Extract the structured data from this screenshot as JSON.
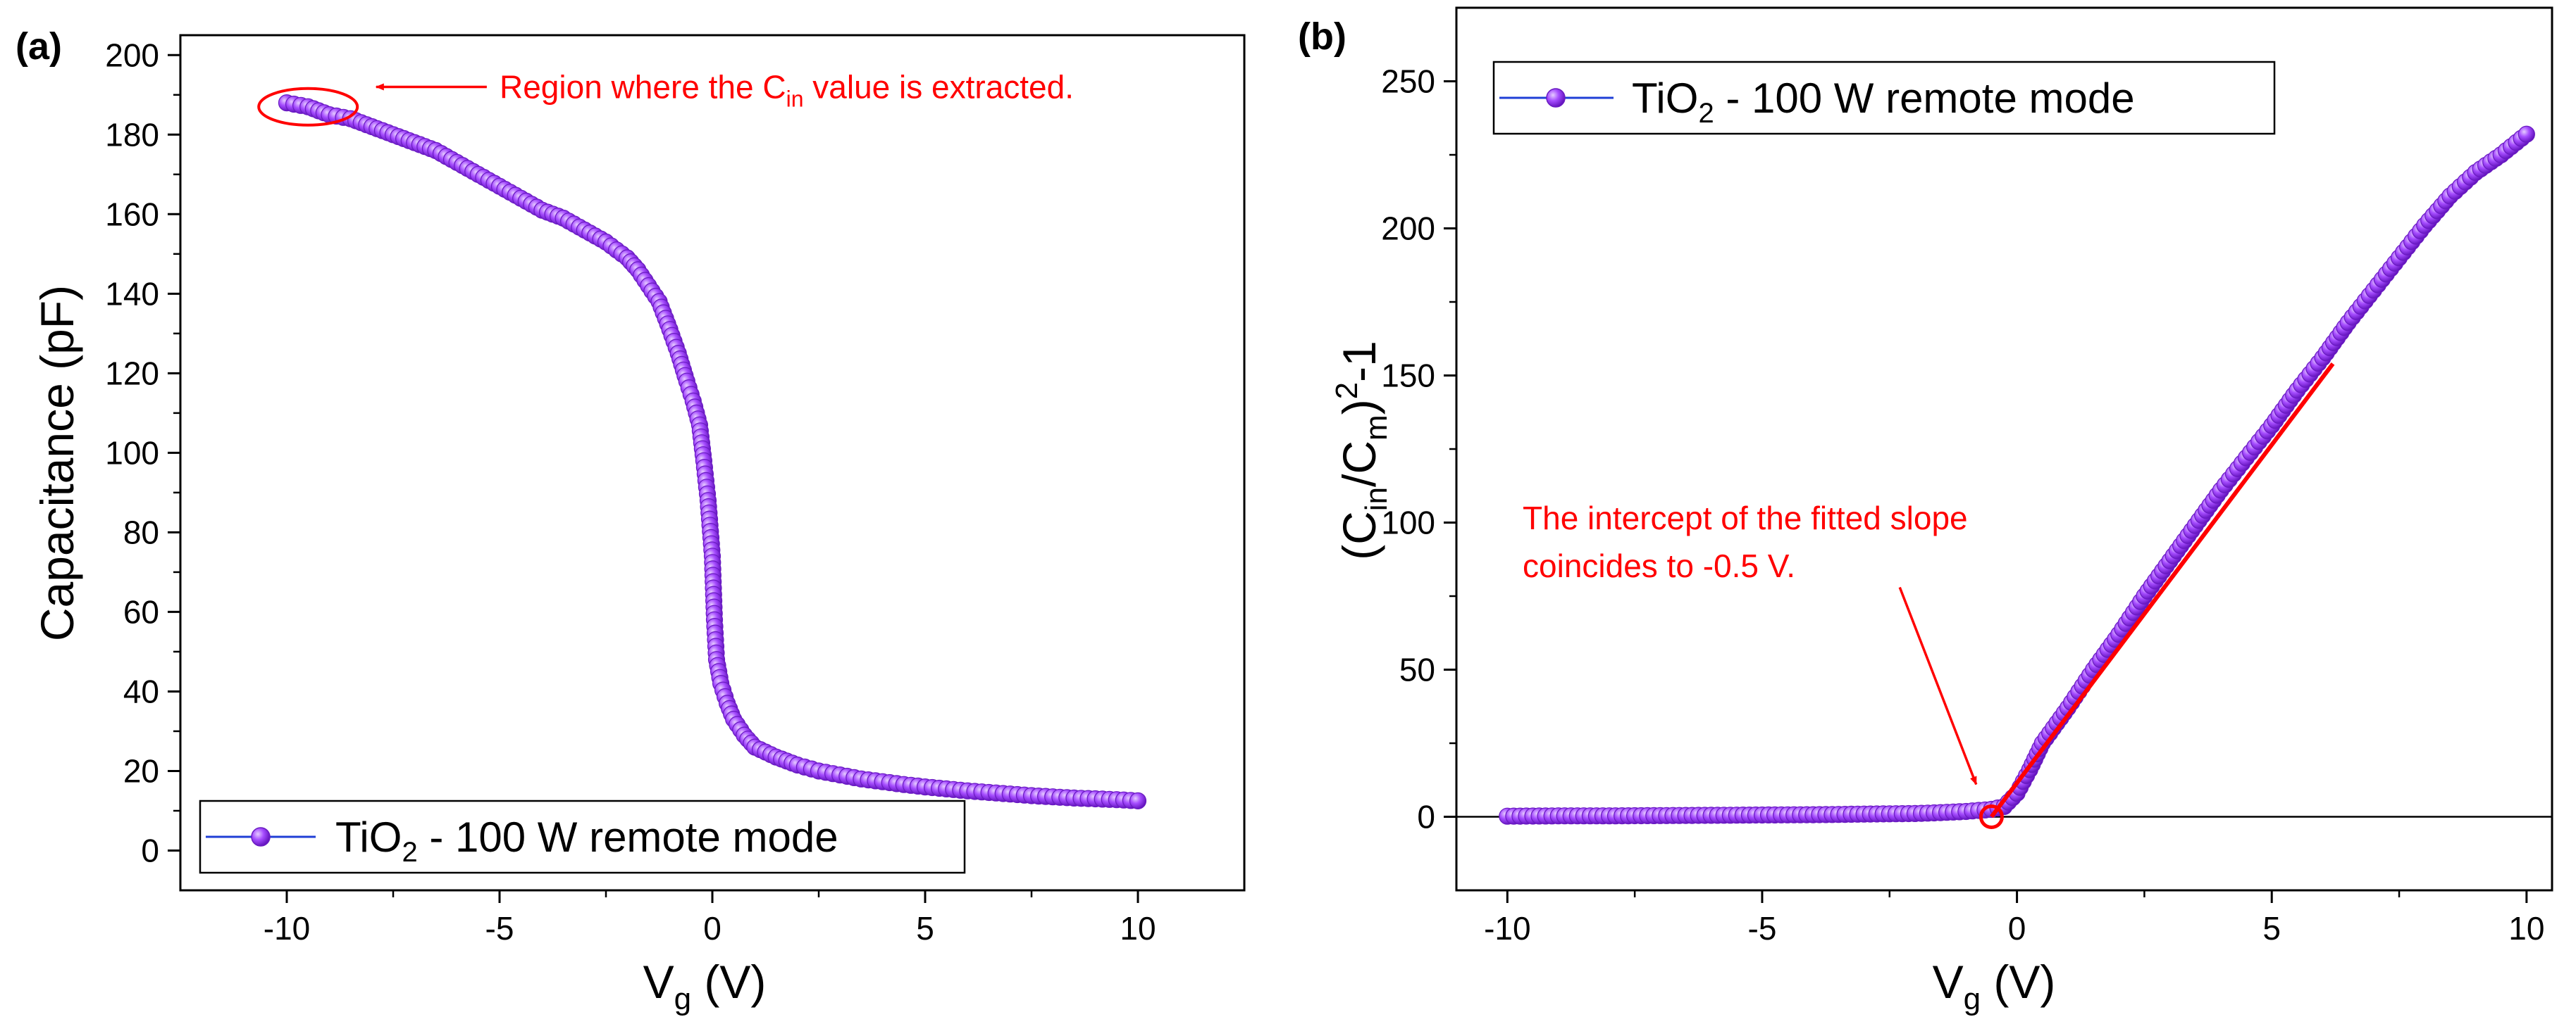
{
  "chart_data": [
    {
      "panel_label": "(a)",
      "type": "line",
      "xlabel_main": "V",
      "xlabel_sub": "g",
      "xlabel_tail": " (V)",
      "ylabel": "Capacitance (pF)",
      "xlim": [
        -12.5,
        12.5
      ],
      "ylim": [
        -10,
        205
      ],
      "xticks": [
        -10,
        -5,
        0,
        5,
        10
      ],
      "xtick_labels": [
        "-10",
        "-5",
        "0",
        "5",
        "10"
      ],
      "yticks": [
        0,
        20,
        40,
        60,
        80,
        100,
        120,
        140,
        160,
        180,
        200
      ],
      "ytick_labels": [
        "0",
        "20",
        "40",
        "60",
        "80",
        "100",
        "120",
        "140",
        "160",
        "180",
        "200"
      ],
      "grid": false,
      "legend": {
        "position": "bottom-center",
        "main": "TiO",
        "sub": "2",
        "tail": " - 100 W remote mode"
      },
      "series": [
        {
          "name": "TiO2 - 100 W remote mode",
          "marker_color": "#8a2be2",
          "line_color": "#1f3fd6",
          "x": [
            -10,
            -9.5,
            -9,
            -8.5,
            -8,
            -7.5,
            -7,
            -6.5,
            -6,
            -5.5,
            -5,
            -4.5,
            -4,
            -3.5,
            -3,
            -2.5,
            -2,
            -1.75,
            -1.5,
            -1.25,
            -1.0,
            -0.8,
            -0.6,
            -0.45,
            -0.3,
            -0.2,
            -0.1,
            0.0,
            0.05,
            0.1,
            0.2,
            0.35,
            0.5,
            0.75,
            1.0,
            1.5,
            2.0,
            2.5,
            3.0,
            3.5,
            4.0,
            4.5,
            5.0,
            5.5,
            6.0,
            6.5,
            7.0,
            7.5,
            8.0,
            8.5,
            9.0,
            9.5,
            10
          ],
          "y": [
            188,
            187,
            185,
            184,
            182,
            180,
            178,
            176,
            173,
            170,
            167,
            164,
            161,
            159,
            156,
            153,
            149,
            146,
            142,
            138,
            131,
            125,
            118,
            113,
            107,
            98,
            88,
            74,
            58,
            48,
            42,
            37,
            33,
            29,
            26,
            23.5,
            21.5,
            20,
            19,
            18,
            17.3,
            16.6,
            16,
            15.5,
            15,
            14.6,
            14.2,
            13.8,
            13.5,
            13.2,
            13,
            12.8,
            12.5
          ]
        }
      ],
      "annotations": [
        {
          "type": "ellipse",
          "at": [
            -9.5,
            187
          ],
          "color": "#ff0000"
        },
        {
          "type": "arrow",
          "from": [
            -5.3,
            192
          ],
          "to": [
            -7.9,
            192
          ],
          "color": "#ff0000"
        },
        {
          "type": "text",
          "at": [
            -5.0,
            192
          ],
          "main": "Region where the C",
          "sub": "in",
          "tail": " value is extracted.",
          "color": "#ff0000"
        }
      ]
    },
    {
      "panel_label": "(b)",
      "type": "line",
      "xlabel_main": "V",
      "xlabel_sub": "g",
      "xlabel_tail": " (V)",
      "ylabel_parts": [
        "(C",
        "in",
        "/C",
        "m",
        ")",
        "2",
        "-1"
      ],
      "xlim": [
        -11,
        10.5
      ],
      "ylim": [
        -25,
        275
      ],
      "xticks": [
        -10,
        -5,
        0,
        5,
        10
      ],
      "xtick_labels": [
        "-10",
        "-5",
        "0",
        "5",
        "10"
      ],
      "yticks": [
        0,
        50,
        100,
        150,
        200,
        250
      ],
      "ytick_labels": [
        "0",
        "50",
        "100",
        "150",
        "200",
        "250"
      ],
      "grid": false,
      "baseline": 0,
      "legend": {
        "position": "top-left",
        "main": "TiO",
        "sub": "2",
        "tail": " - 100 W remote mode"
      },
      "series": [
        {
          "name": "TiO2 - 100 W remote mode",
          "marker_color": "#8a2be2",
          "line_color": "#1f3fd6",
          "x": [
            -10,
            -9,
            -8,
            -7,
            -6,
            -5,
            -4,
            -3,
            -2,
            -1.5,
            -1.0,
            -0.5,
            -0.25,
            0.0,
            0.25,
            0.5,
            1.0,
            1.5,
            2.0,
            2.5,
            3.0,
            3.5,
            4.0,
            4.5,
            5.0,
            5.5,
            6.0,
            6.5,
            7.0,
            7.5,
            8.0,
            8.5,
            9.0,
            9.5,
            10.0
          ],
          "y": [
            0.2,
            0.3,
            0.3,
            0.4,
            0.5,
            0.6,
            0.7,
            0.9,
            1.1,
            1.4,
            1.8,
            2.5,
            3.5,
            8,
            16,
            25,
            37,
            50,
            62,
            75,
            87,
            99,
            111,
            122,
            133,
            145,
            156,
            168,
            179,
            190,
            201,
            211,
            219,
            225,
            232
          ]
        }
      ],
      "fit_line": {
        "color": "#ff0000",
        "x": [
          -0.5,
          6.2
        ],
        "y": [
          0,
          154
        ]
      },
      "annotations": [
        {
          "type": "circle",
          "at": [
            -0.5,
            0
          ],
          "color": "#ff0000"
        },
        {
          "type": "arrow",
          "from": [
            -2.3,
            78
          ],
          "to": [
            -0.8,
            11
          ],
          "color": "#ff0000"
        },
        {
          "type": "text",
          "at": [
            -9.7,
            91
          ],
          "lines": [
            "The intercept of the fitted slope",
            "coincides to -0.5 V."
          ],
          "color": "#ff0000"
        }
      ]
    }
  ]
}
